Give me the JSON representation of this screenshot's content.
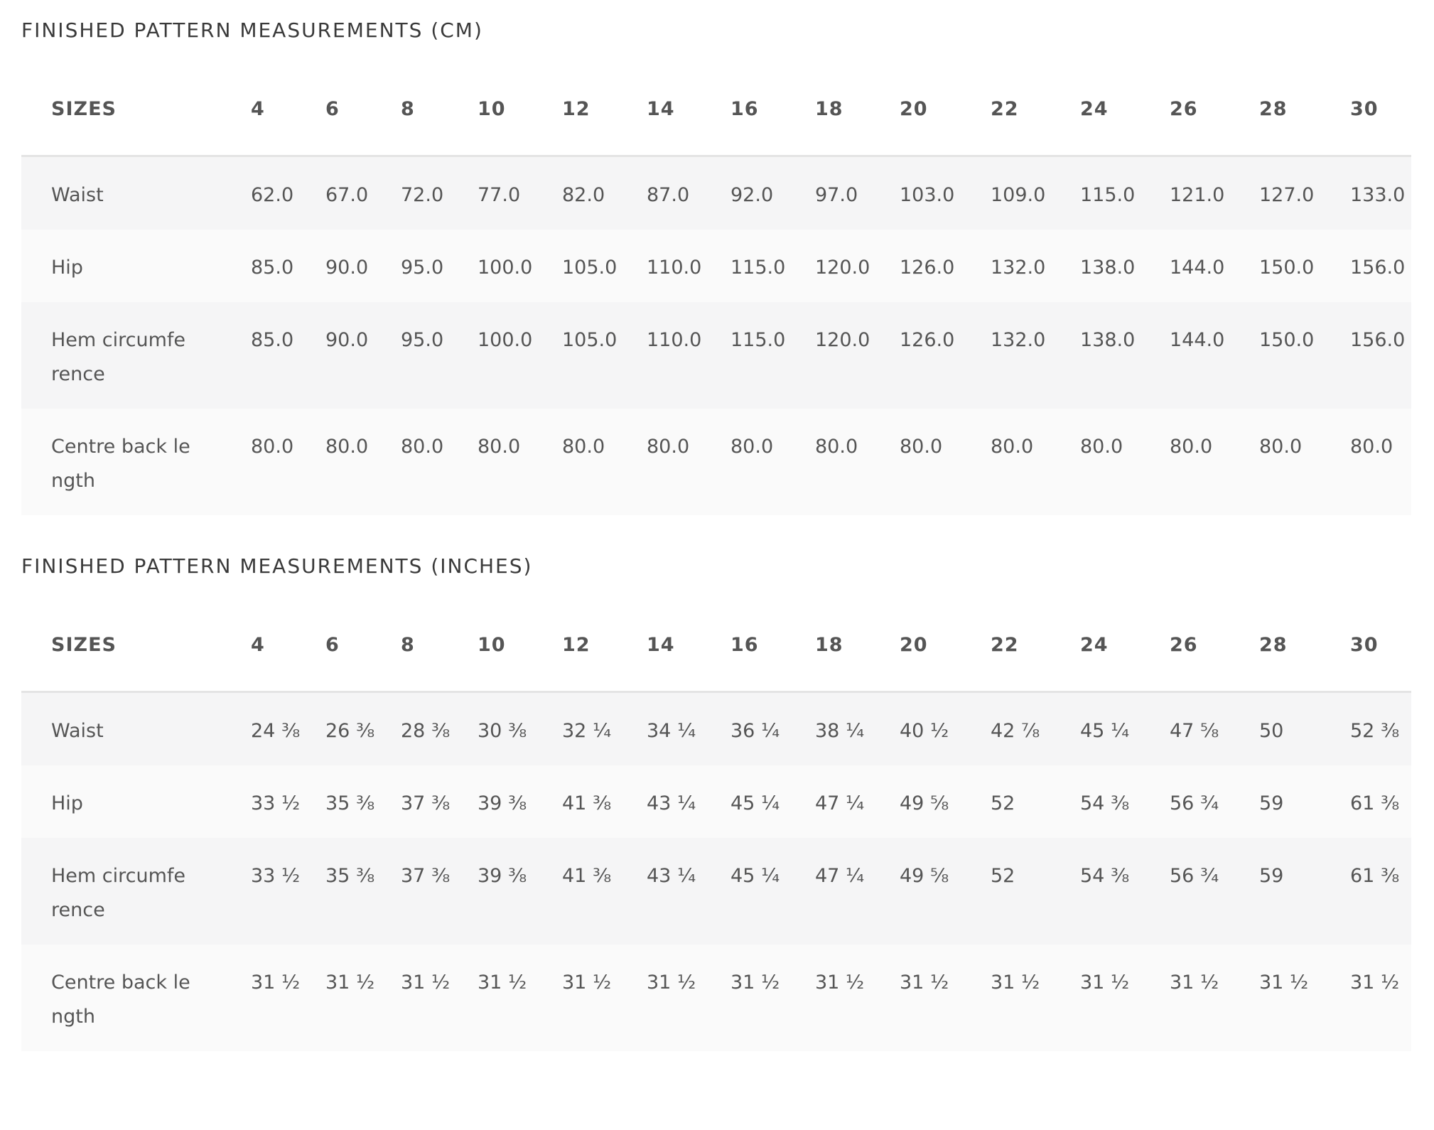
{
  "sections": [
    {
      "title": "FINISHED PATTERN MEASUREMENTS (CM)",
      "header": [
        "SIZES",
        "4",
        "6",
        "8",
        "10",
        "12",
        "14",
        "16",
        "18",
        "20",
        "22",
        "24",
        "26",
        "28",
        "30"
      ],
      "rows": [
        [
          "Waist",
          "62.0",
          "67.0",
          "72.0",
          "77.0",
          "82.0",
          "87.0",
          "92.0",
          "97.0",
          "103.0",
          "109.0",
          "115.0",
          "121.0",
          "127.0",
          "133.0"
        ],
        [
          "Hip",
          "85.0",
          "90.0",
          "95.0",
          "100.0",
          "105.0",
          "110.0",
          "115.0",
          "120.0",
          "126.0",
          "132.0",
          "138.0",
          "144.0",
          "150.0",
          "156.0"
        ],
        [
          "Hem circumference",
          "85.0",
          "90.0",
          "95.0",
          "100.0",
          "105.0",
          "110.0",
          "115.0",
          "120.0",
          "126.0",
          "132.0",
          "138.0",
          "144.0",
          "150.0",
          "156.0"
        ],
        [
          "Centre back length",
          "80.0",
          "80.0",
          "80.0",
          "80.0",
          "80.0",
          "80.0",
          "80.0",
          "80.0",
          "80.0",
          "80.0",
          "80.0",
          "80.0",
          "80.0",
          "80.0"
        ]
      ]
    },
    {
      "title": "FINISHED PATTERN MEASUREMENTS (INCHES)",
      "header": [
        "SIZES",
        "4",
        "6",
        "8",
        "10",
        "12",
        "14",
        "16",
        "18",
        "20",
        "22",
        "24",
        "26",
        "28",
        "30"
      ],
      "rows": [
        [
          "Waist",
          "24 ⅜",
          "26 ⅜",
          "28 ⅜",
          "30 ⅜",
          "32 ¼",
          "34 ¼",
          "36 ¼",
          "38 ¼",
          "40 ½",
          "42 ⅞",
          "45 ¼",
          "47 ⅝",
          "50",
          "52 ⅜"
        ],
        [
          "Hip",
          "33 ½",
          "35 ⅜",
          "37 ⅜",
          "39 ⅜",
          "41 ⅜",
          "43 ¼",
          "45 ¼",
          "47 ¼",
          "49 ⅝",
          "52",
          "54 ⅜",
          "56 ¾",
          "59",
          "61 ⅜"
        ],
        [
          "Hem circumference",
          "33 ½",
          "35 ⅜",
          "37 ⅜",
          "39 ⅜",
          "41 ⅜",
          "43 ¼",
          "45 ¼",
          "47 ¼",
          "49 ⅝",
          "52",
          "54 ⅜",
          "56 ¾",
          "59",
          "61 ⅜"
        ],
        [
          "Centre back length",
          "31 ½",
          "31 ½",
          "31 ½",
          "31 ½",
          "31 ½",
          "31 ½",
          "31 ½",
          "31 ½",
          "31 ½",
          "31 ½",
          "31 ½",
          "31 ½",
          "31 ½",
          "31 ½"
        ]
      ]
    }
  ]
}
